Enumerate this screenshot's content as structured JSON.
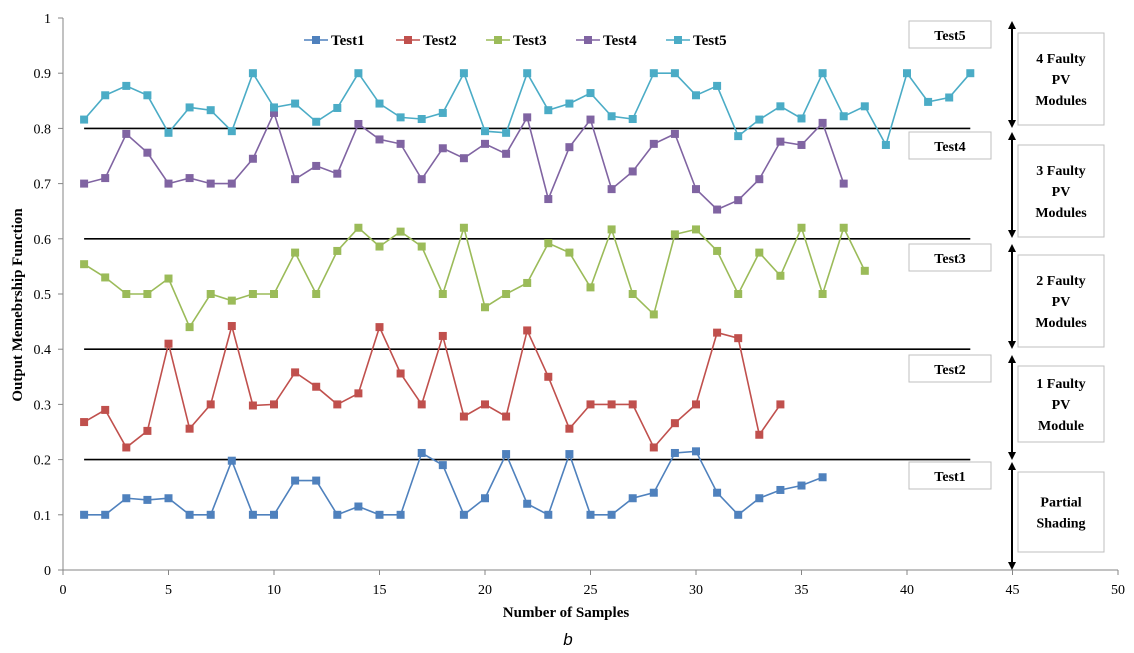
{
  "chart_data": {
    "type": "line",
    "title": "",
    "xlabel": "Number of Samples",
    "ylabel": "Output Memebrship Function",
    "xlim": [
      0,
      50
    ],
    "ylim": [
      0,
      1
    ],
    "xticks": [
      "0",
      "5",
      "10",
      "15",
      "20",
      "25",
      "30",
      "35",
      "40",
      "45",
      "50"
    ],
    "yticks": [
      "0",
      "0.1",
      "0.2",
      "0.3",
      "0.4",
      "0.5",
      "0.6",
      "0.7",
      "0.8",
      "0.9",
      "1"
    ],
    "grid": false,
    "legend_position": "top",
    "thresholds": [
      0.2,
      0.4,
      0.6,
      0.8
    ],
    "caption": "b",
    "series": [
      {
        "name": "Test1",
        "color": "#4F81BD",
        "marker": "square",
        "x": [
          1,
          2,
          3,
          4,
          5,
          6,
          7,
          8,
          9,
          10,
          11,
          12,
          13,
          14,
          15,
          16,
          17,
          18,
          19,
          20,
          21,
          22,
          23,
          24,
          25,
          26,
          27,
          28,
          29,
          30,
          31,
          32,
          33,
          34,
          35,
          36
        ],
        "y": [
          0.1,
          0.1,
          0.13,
          0.127,
          0.13,
          0.1,
          0.1,
          0.198,
          0.1,
          0.1,
          0.162,
          0.162,
          0.1,
          0.115,
          0.1,
          0.1,
          0.212,
          0.19,
          0.1,
          0.13,
          0.21,
          0.12,
          0.1,
          0.21,
          0.1,
          0.1,
          0.13,
          0.14,
          0.212,
          0.215,
          0.14,
          0.1,
          0.13,
          0.145,
          0.153,
          0.168
        ]
      },
      {
        "name": "Test2",
        "color": "#C0504D",
        "marker": "square",
        "x": [
          1,
          2,
          3,
          4,
          5,
          6,
          7,
          8,
          9,
          10,
          11,
          12,
          13,
          14,
          15,
          16,
          17,
          18,
          19,
          20,
          21,
          22,
          23,
          24,
          25,
          26,
          27,
          28,
          29,
          30,
          31,
          32,
          33,
          34
        ],
        "y": [
          0.268,
          0.29,
          0.222,
          0.252,
          0.41,
          0.256,
          0.3,
          0.442,
          0.298,
          0.3,
          0.358,
          0.332,
          0.3,
          0.32,
          0.44,
          0.356,
          0.3,
          0.424,
          0.278,
          0.3,
          0.278,
          0.434,
          0.35,
          0.256,
          0.3,
          0.3,
          0.3,
          0.222,
          0.266,
          0.3,
          0.43,
          0.42,
          0.245,
          0.3
        ]
      },
      {
        "name": "Test3",
        "color": "#9BBB59",
        "marker": "square",
        "x": [
          1,
          2,
          3,
          4,
          5,
          6,
          7,
          8,
          9,
          10,
          11,
          12,
          13,
          14,
          15,
          16,
          17,
          18,
          19,
          20,
          21,
          22,
          23,
          24,
          25,
          26,
          27,
          28,
          29,
          30,
          31,
          32,
          33,
          34,
          35,
          36,
          37,
          38
        ],
        "y": [
          0.554,
          0.53,
          0.5,
          0.5,
          0.528,
          0.44,
          0.5,
          0.488,
          0.5,
          0.5,
          0.575,
          0.5,
          0.578,
          0.62,
          0.586,
          0.613,
          0.586,
          0.5,
          0.62,
          0.476,
          0.5,
          0.52,
          0.592,
          0.575,
          0.512,
          0.617,
          0.5,
          0.463,
          0.608,
          0.617,
          0.578,
          0.5,
          0.575,
          0.533,
          0.62,
          0.5,
          0.62,
          0.542
        ]
      },
      {
        "name": "Test4",
        "color": "#8064A2",
        "marker": "square",
        "x": [
          1,
          2,
          3,
          4,
          5,
          6,
          7,
          8,
          9,
          10,
          11,
          12,
          13,
          14,
          15,
          16,
          17,
          18,
          19,
          20,
          21,
          22,
          23,
          24,
          25,
          26,
          27,
          28,
          29,
          30,
          31,
          32,
          33,
          34,
          35,
          36,
          37
        ],
        "y": [
          0.7,
          0.71,
          0.79,
          0.756,
          0.7,
          0.71,
          0.7,
          0.7,
          0.745,
          0.828,
          0.708,
          0.732,
          0.718,
          0.808,
          0.78,
          0.772,
          0.708,
          0.764,
          0.746,
          0.772,
          0.754,
          0.82,
          0.672,
          0.766,
          0.816,
          0.69,
          0.722,
          0.772,
          0.79,
          0.69,
          0.653,
          0.67,
          0.708,
          0.776,
          0.77,
          0.81,
          0.7
        ]
      },
      {
        "name": "Test5",
        "color": "#4BACC6",
        "marker": "square",
        "x": [
          1,
          2,
          3,
          4,
          5,
          6,
          7,
          8,
          9,
          10,
          11,
          12,
          13,
          14,
          15,
          16,
          17,
          18,
          19,
          20,
          21,
          22,
          23,
          24,
          25,
          26,
          27,
          28,
          29,
          30,
          31,
          32,
          33,
          34,
          35,
          36,
          37,
          38,
          39,
          40,
          41,
          42,
          43
        ],
        "y": [
          0.816,
          0.86,
          0.877,
          0.86,
          0.792,
          0.838,
          0.833,
          0.795,
          0.9,
          0.838,
          0.845,
          0.812,
          0.837,
          0.9,
          0.845,
          0.82,
          0.817,
          0.828,
          0.9,
          0.795,
          0.792,
          0.9,
          0.833,
          0.845,
          0.864,
          0.822,
          0.817,
          0.9,
          0.9,
          0.86,
          0.877,
          0.786,
          0.816,
          0.84,
          0.818,
          0.9,
          0.822,
          0.84,
          0.77,
          0.9,
          0.848,
          0.856,
          0.9
        ]
      }
    ]
  },
  "test_labels": [
    "Test5",
    "Test4",
    "Test3",
    "Test2",
    "Test1"
  ],
  "regions": [
    {
      "lines": [
        "4 Faulty",
        "PV",
        "Modules"
      ]
    },
    {
      "lines": [
        "3 Faulty",
        "PV",
        "Modules"
      ]
    },
    {
      "lines": [
        "2 Faulty",
        "PV",
        "Modules"
      ]
    },
    {
      "lines": [
        "1 Faulty",
        "PV",
        "Module"
      ]
    },
    {
      "lines": [
        "Partial",
        "Shading"
      ]
    }
  ]
}
